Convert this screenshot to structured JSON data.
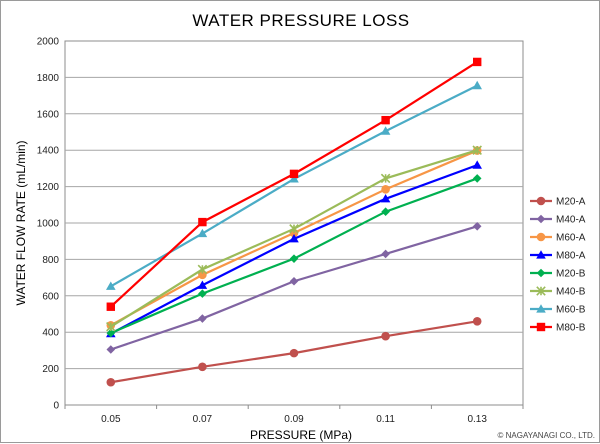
{
  "chart_data": {
    "type": "line",
    "title": "WATER PRESSURE LOSS",
    "xlabel": "PRESSURE (MPa)",
    "ylabel": "WATER FLOW RATE (mL/min)",
    "x": [
      "0.05",
      "0.07",
      "0.09",
      "0.11",
      "0.13"
    ],
    "ylim": [
      0,
      2000
    ],
    "yticks": [
      "0",
      "200",
      "400",
      "600",
      "800",
      "1000",
      "1200",
      "1400",
      "1600",
      "1800",
      "2000"
    ],
    "grid": true,
    "legend_position": "right",
    "series": [
      {
        "name": "M20-A",
        "color": "#c0504d",
        "marker": "circle",
        "values": [
          125,
          210,
          285,
          378,
          460
        ]
      },
      {
        "name": "M40-A",
        "color": "#8064a2",
        "marker": "diamond",
        "values": [
          305,
          475,
          680,
          830,
          982
        ]
      },
      {
        "name": "M60-A",
        "color": "#f79646",
        "marker": "circle",
        "values": [
          438,
          715,
          945,
          1185,
          1398
        ]
      },
      {
        "name": "M80-A",
        "color": "#0000ff",
        "marker": "triangle",
        "values": [
          392,
          658,
          913,
          1133,
          1318
        ]
      },
      {
        "name": "M20-B",
        "color": "#00b050",
        "marker": "diamond",
        "values": [
          395,
          612,
          804,
          1062,
          1245
        ]
      },
      {
        "name": "M40-B",
        "color": "#9bbb59",
        "marker": "x",
        "values": [
          430,
          745,
          968,
          1245,
          1400
        ]
      },
      {
        "name": "M60-B",
        "color": "#4bacc6",
        "marker": "triangle",
        "values": [
          652,
          942,
          1242,
          1505,
          1755
        ]
      },
      {
        "name": "M80-B",
        "color": "#ff0000",
        "marker": "square",
        "values": [
          540,
          1005,
          1270,
          1565,
          1885
        ]
      }
    ]
  },
  "footer": {
    "copyright": "© NAGAYANAGI CO., LTD."
  }
}
